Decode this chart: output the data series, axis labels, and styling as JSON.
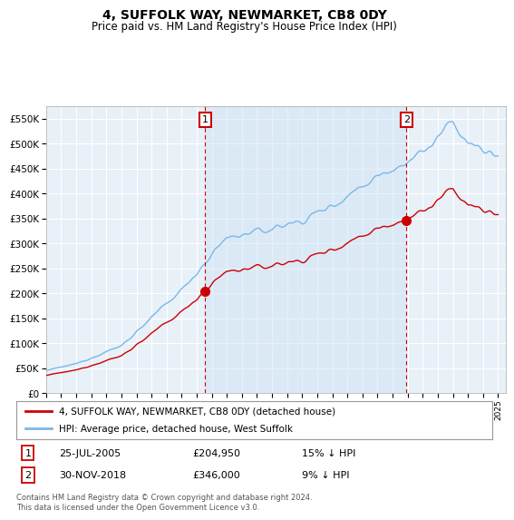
{
  "title": "4, SUFFOLK WAY, NEWMARKET, CB8 0DY",
  "subtitle": "Price paid vs. HM Land Registry's House Price Index (HPI)",
  "legend_line1": "4, SUFFOLK WAY, NEWMARKET, CB8 0DY (detached house)",
  "legend_line2": "HPI: Average price, detached house, West Suffolk",
  "annotation1_date": "25-JUL-2005",
  "annotation1_price": "£204,950",
  "annotation1_note": "15% ↓ HPI",
  "annotation2_date": "30-NOV-2018",
  "annotation2_price": "£346,000",
  "annotation2_note": "9% ↓ HPI",
  "footer": "Contains HM Land Registry data © Crown copyright and database right 2024.\nThis data is licensed under the Open Government Licence v3.0.",
  "purchase1_year": 2005.57,
  "purchase1_price": 204950,
  "purchase2_year": 2018.92,
  "purchase2_price": 346000,
  "xmin": 1995.0,
  "xmax": 2025.5,
  "ymin": 0,
  "ymax": 575000,
  "hpi_color": "#7ab8e8",
  "price_color": "#cc0000",
  "bg_color": "#e8f0f8",
  "grid_color": "#ffffff"
}
